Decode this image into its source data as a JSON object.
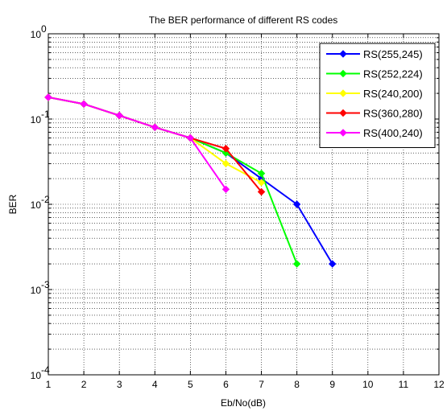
{
  "chart_data": {
    "type": "line",
    "title": "The BER performance of different RS codes",
    "xlabel": "Eb/No(dB)",
    "ylabel": "BER",
    "xlim": [
      1,
      12
    ],
    "ylim": [
      0.0001,
      1
    ],
    "yscale": "log",
    "grid": true,
    "legend_position": "top-right",
    "x_ticks": [
      1,
      2,
      3,
      4,
      5,
      6,
      7,
      8,
      9,
      10,
      11,
      12
    ],
    "y_tick_labels": [
      {
        "value": 1,
        "base": "10",
        "exp": "0"
      },
      {
        "value": 0.1,
        "base": "10",
        "exp": "-1"
      },
      {
        "value": 0.01,
        "base": "10",
        "exp": "-2"
      },
      {
        "value": 0.001,
        "base": "10",
        "exp": "-3"
      },
      {
        "value": 0.0001,
        "base": "10",
        "exp": "-4"
      }
    ],
    "series": [
      {
        "name": "RS(255,245)",
        "color": "#0000ff",
        "x": [
          1,
          2,
          3,
          4,
          5,
          6,
          7,
          8,
          9
        ],
        "y": [
          0.18,
          0.15,
          0.11,
          0.08,
          0.06,
          0.04,
          0.02,
          0.01,
          0.002
        ]
      },
      {
        "name": "RS(252,224)",
        "color": "#00ff00",
        "x": [
          1,
          2,
          3,
          4,
          5,
          6,
          7,
          8
        ],
        "y": [
          0.18,
          0.15,
          0.11,
          0.08,
          0.06,
          0.04,
          0.023,
          0.002
        ]
      },
      {
        "name": "RS(240,200)",
        "color": "#ffff00",
        "x": [
          1,
          2,
          3,
          4,
          5,
          6,
          7
        ],
        "y": [
          0.18,
          0.15,
          0.11,
          0.08,
          0.06,
          0.03,
          0.018
        ]
      },
      {
        "name": "RS(360,280)",
        "color": "#ff0000",
        "x": [
          1,
          2,
          3,
          4,
          5,
          6,
          7
        ],
        "y": [
          0.18,
          0.15,
          0.11,
          0.08,
          0.06,
          0.045,
          0.014
        ]
      },
      {
        "name": "RS(400,240)",
        "color": "#ff00ff",
        "x": [
          1,
          2,
          3,
          4,
          5,
          6
        ],
        "y": [
          0.18,
          0.15,
          0.11,
          0.08,
          0.06,
          0.015
        ]
      }
    ]
  }
}
